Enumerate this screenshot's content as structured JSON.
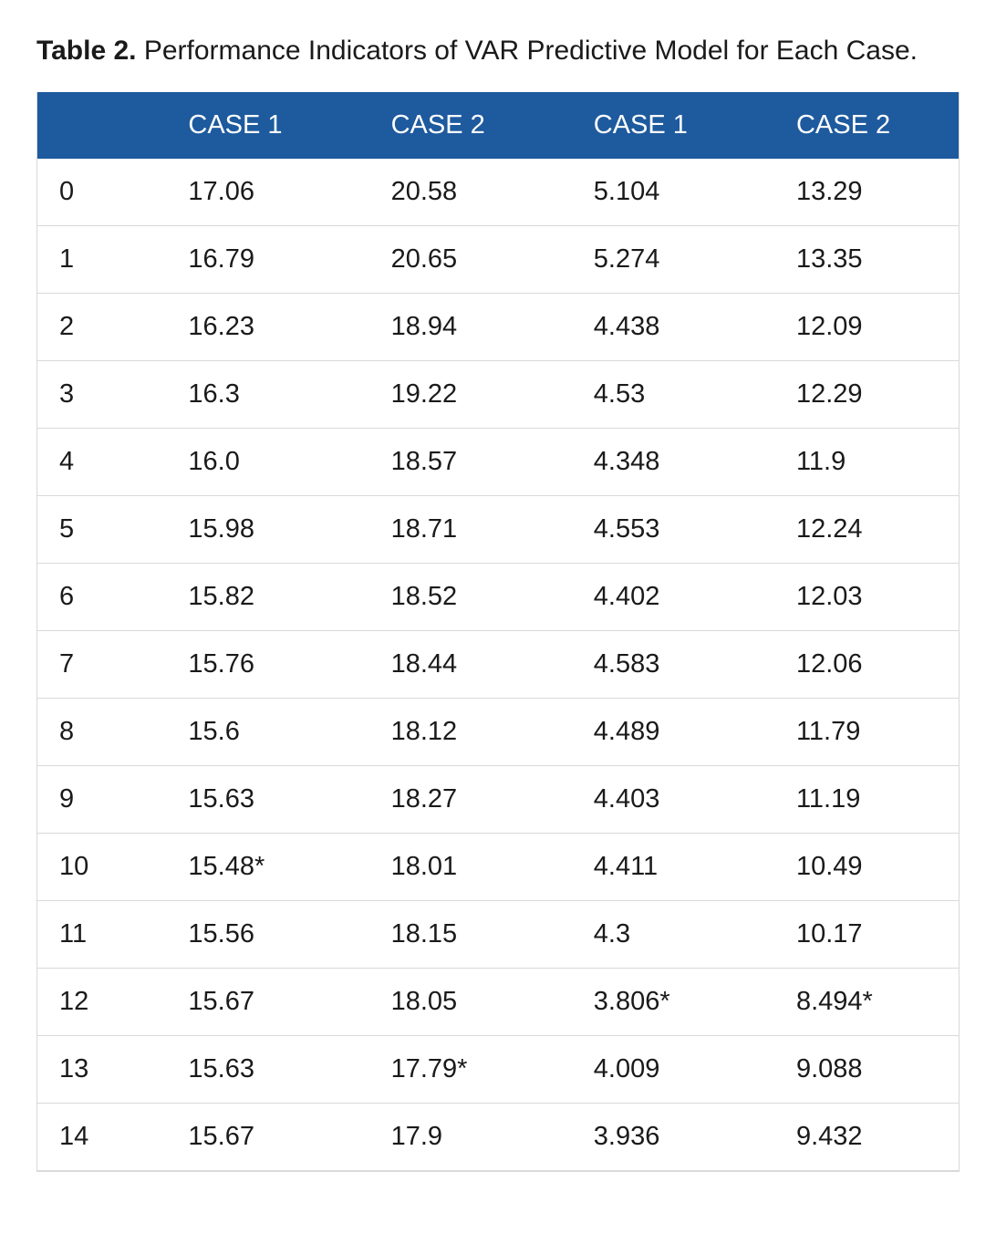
{
  "caption": {
    "lead": "Table 2.",
    "rest": "Performance Indicators of VAR Predictive Model for Each Case."
  },
  "table": {
    "type": "table",
    "header_bg": "#1e5a9e",
    "header_text_color": "#ffffff",
    "body_text_color": "#1a1a1a",
    "row_border_color": "#d9d9d9",
    "font_size_body": 29,
    "font_size_caption": 30,
    "columns": [
      "",
      "CASE 1",
      "CASE 2",
      "CASE 1",
      "CASE 2"
    ],
    "col_widths_pct": [
      14,
      22,
      22,
      22,
      20
    ],
    "rows": [
      [
        "0",
        "17.06",
        "20.58",
        "5.104",
        "13.29"
      ],
      [
        "1",
        "16.79",
        "20.65",
        "5.274",
        "13.35"
      ],
      [
        "2",
        "16.23",
        "18.94",
        "4.438",
        "12.09"
      ],
      [
        "3",
        "16.3",
        "19.22",
        "4.53",
        "12.29"
      ],
      [
        "4",
        "16.0",
        "18.57",
        "4.348",
        "11.9"
      ],
      [
        "5",
        "15.98",
        "18.71",
        "4.553",
        "12.24"
      ],
      [
        "6",
        "15.82",
        "18.52",
        "4.402",
        "12.03"
      ],
      [
        "7",
        "15.76",
        "18.44",
        "4.583",
        "12.06"
      ],
      [
        "8",
        "15.6",
        "18.12",
        "4.489",
        "11.79"
      ],
      [
        "9",
        "15.63",
        "18.27",
        "4.403",
        "11.19"
      ],
      [
        "10",
        "15.48*",
        "18.01",
        "4.411",
        "10.49"
      ],
      [
        "11",
        "15.56",
        "18.15",
        "4.3",
        "10.17"
      ],
      [
        "12",
        "15.67",
        "18.05",
        "3.806*",
        "8.494*"
      ],
      [
        "13",
        "15.63",
        "17.79*",
        "4.009",
        "9.088"
      ],
      [
        "14",
        "15.67",
        "17.9",
        "3.936",
        "9.432"
      ]
    ],
    "right_align_cells": [
      [
        12,
        4
      ],
      [
        13,
        4
      ],
      [
        14,
        4
      ]
    ]
  }
}
